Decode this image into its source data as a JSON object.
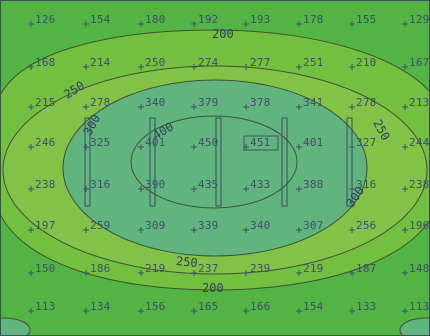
{
  "colors": {
    "outer_band": "#52b443",
    "band_200_250": "#73bf3f",
    "band_250_300": "#83c249",
    "center_zone": "#62b47e",
    "contour_line": "#3e5232",
    "frame": "#3d4d5c",
    "label": "#3e4f6a"
  },
  "contour_labels": [
    "200",
    "250",
    "300",
    "400",
    "250",
    "300",
    "250",
    "200"
  ],
  "grid_values": [
    [
      "126",
      "154",
      "180",
      "192",
      "193",
      "178",
      "155",
      "129"
    ],
    [
      "168",
      "214",
      "250",
      "274",
      "277",
      "251",
      "210",
      "167"
    ],
    [
      "215",
      "278",
      "340",
      "379",
      "378",
      "341",
      "278",
      "213"
    ],
    [
      "246",
      "325",
      "401",
      "450",
      "451",
      "401",
      "327",
      "244"
    ],
    [
      "238",
      "316",
      "390",
      "435",
      "433",
      "388",
      "316",
      "238"
    ],
    [
      "197",
      "259",
      "309",
      "339",
      "340",
      "307",
      "256",
      "196"
    ],
    [
      "150",
      "186",
      "219",
      "237",
      "239",
      "219",
      "187",
      "148"
    ],
    [
      "113",
      "134",
      "156",
      "165",
      "166",
      "154",
      "133",
      "113"
    ]
  ],
  "highlighted_cell": {
    "row": 3,
    "col": 4
  },
  "luminaire_rows": 5
}
